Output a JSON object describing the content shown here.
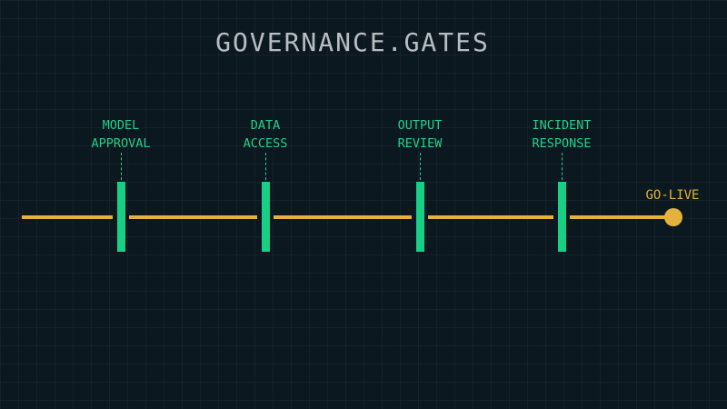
{
  "title": "GOVERNANCE.GATES",
  "gates": [
    {
      "line1": "MODEL",
      "line2": "APPROVAL"
    },
    {
      "line1": "DATA",
      "line2": "ACCESS"
    },
    {
      "line1": "OUTPUT",
      "line2": "REVIEW"
    },
    {
      "line1": "INCIDENT",
      "line2": "RESPONSE"
    }
  ],
  "endpoint": {
    "label": "GO-LIVE"
  },
  "colors": {
    "gate": "#17d085",
    "track": "#e3b23c",
    "background": "#0c1820",
    "title": "#b8bdc2"
  }
}
